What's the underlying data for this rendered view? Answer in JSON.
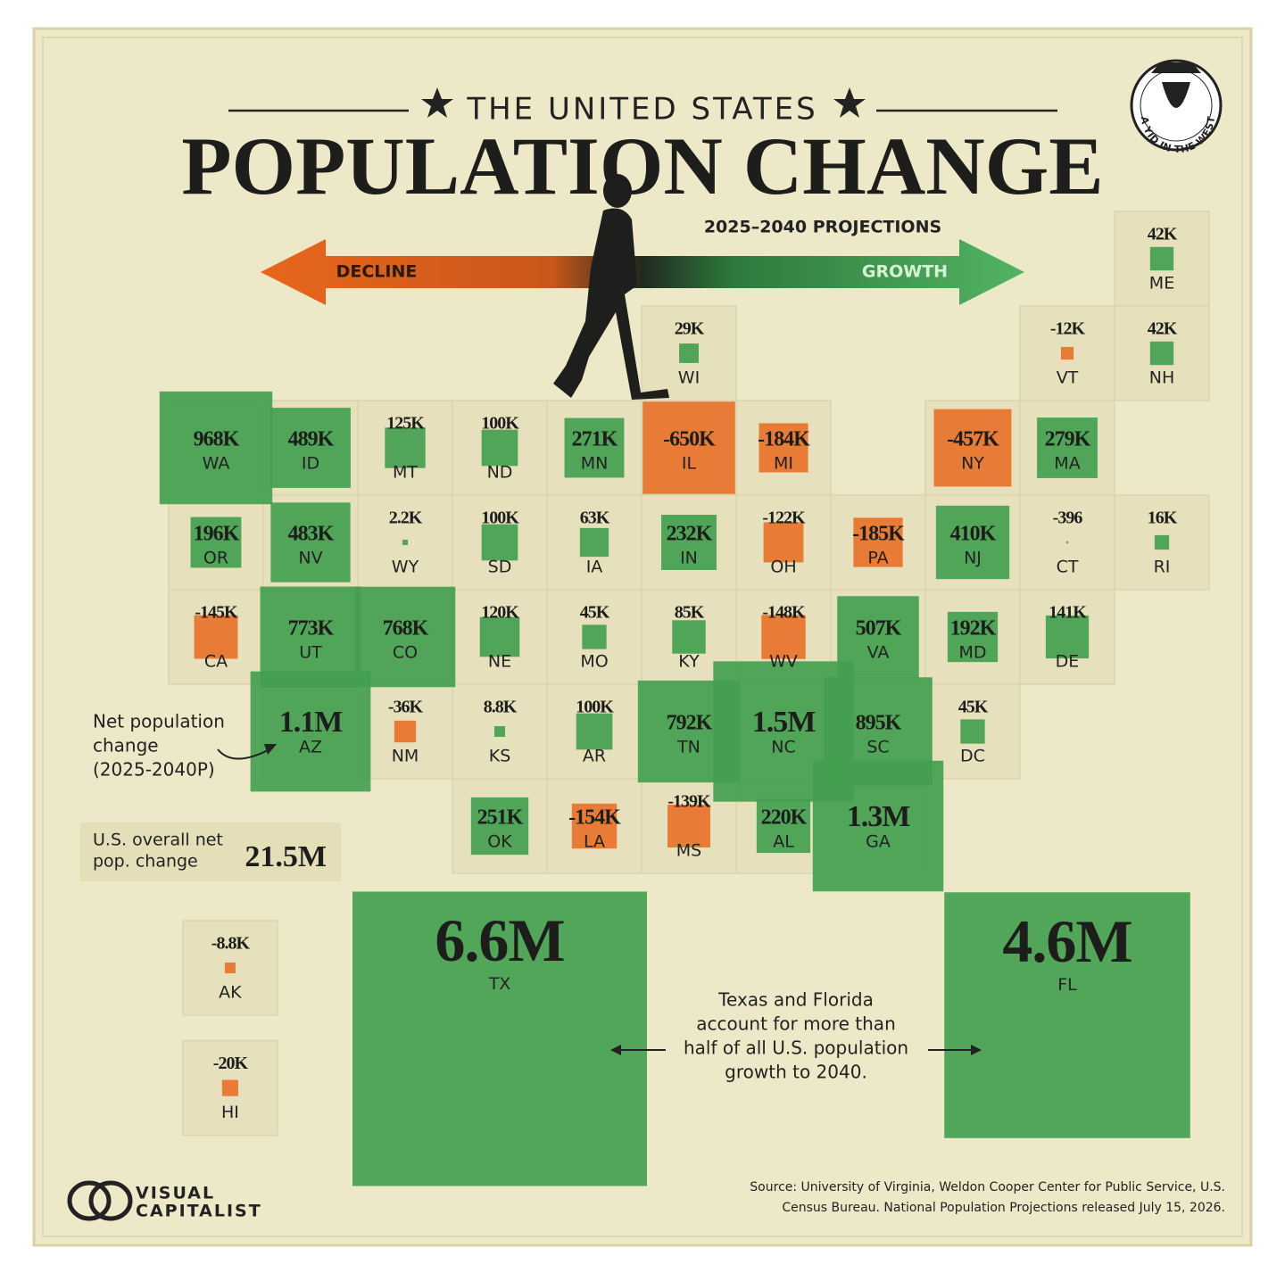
{
  "chart_data": {
    "type": "tile-map",
    "header": "THE UNITED STATES",
    "title": "POPULATION CHANGE",
    "subtitle": "2025–2040 PROJECTIONS",
    "decline_label": "DECLINE",
    "growth_label": "GROWTH",
    "annotation": [
      "Net population",
      "change",
      "(2025-2040P)"
    ],
    "total_title": [
      "U.S. overall net",
      "pop. change"
    ],
    "total": {
      "value": 21500000,
      "label": "21.5M"
    },
    "note": [
      "Texas and Florida",
      "account for more than",
      "half of all U.S. population",
      "growth to 2040."
    ],
    "source": [
      "Source: University of Virginia, Weldon Cooper Center for Public Service, U.S.",
      "Census Bureau. National Population Projections released July 15, 2026."
    ],
    "brand": [
      "VISUAL",
      "CAPITALIST"
    ],
    "badge": "A YID IN THE WEST",
    "color": "#43a04f",
    "negative_color": "#e8732a",
    "categories": [
      "ME",
      "WI",
      "VT",
      "NH",
      "WA",
      "ID",
      "MT",
      "ND",
      "MN",
      "IL",
      "MI",
      "NY",
      "MA",
      "OR",
      "NV",
      "WY",
      "SD",
      "IA",
      "IN",
      "OH",
      "PA",
      "NJ",
      "CT",
      "RI",
      "CA",
      "UT",
      "CO",
      "NE",
      "MO",
      "KY",
      "WV",
      "VA",
      "MD",
      "DE",
      "AZ",
      "NM",
      "KS",
      "AR",
      "TN",
      "NC",
      "SC",
      "DC",
      "OK",
      "LA",
      "MS",
      "AL",
      "GA",
      "TX",
      "FL",
      "AK",
      "HI"
    ],
    "values": [
      42000,
      29000,
      -12000,
      42000,
      968000,
      489000,
      125000,
      100000,
      271000,
      -650000,
      -184000,
      -457000,
      279000,
      196000,
      483000,
      2200,
      100000,
      63000,
      232000,
      -122000,
      -185000,
      410000,
      -396,
      16000,
      -145000,
      773000,
      768000,
      120000,
      45000,
      85000,
      -148000,
      507000,
      192000,
      141000,
      1100000,
      -36000,
      8800,
      100000,
      792000,
      1500000,
      895000,
      45000,
      251000,
      -154000,
      -139000,
      220000,
      1300000,
      6600000,
      4600000,
      -8800,
      -20000
    ],
    "value_labels": [
      "42K",
      "29K",
      "-12K",
      "42K",
      "968K",
      "489K",
      "125K",
      "100K",
      "271K",
      "-650K",
      "-184K",
      "-457K",
      "279K",
      "196K",
      "483K",
      "2.2K",
      "100K",
      "63K",
      "232K",
      "-122K",
      "-185K",
      "410K",
      "-396",
      "16K",
      "-145K",
      "773K",
      "768K",
      "120K",
      "45K",
      "85K",
      "-148K",
      "507K",
      "192K",
      "141K",
      "1.1M",
      "-36K",
      "8.8K",
      "100K",
      "792K",
      "1.5M",
      "895K",
      "45K",
      "251K",
      "-154K",
      "-139K",
      "220K",
      "1.3M",
      "6.6M",
      "4.6M",
      "-8.8K",
      "-20K"
    ]
  }
}
